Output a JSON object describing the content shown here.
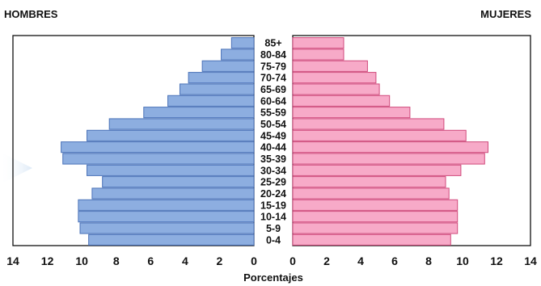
{
  "chart_data": {
    "type": "bar",
    "orientation": "horizontal",
    "subtype": "population-pyramid",
    "left_label": "HOMBRES",
    "right_label": "MUJERES",
    "xlabel": "Porcentajes",
    "categories": [
      "85+",
      "80-84",
      "75-79",
      "70-74",
      "65-69",
      "60-64",
      "55-59",
      "50-54",
      "45-49",
      "40-44",
      "35-39",
      "30-34",
      "25-29",
      "20-24",
      "15-19",
      "10-14",
      "5-9",
      "0-4"
    ],
    "series": [
      {
        "name": "HOMBRES",
        "color": "#8daee0",
        "edge": "#4a72b8",
        "values": [
          1.3,
          1.9,
          3.0,
          3.8,
          4.3,
          5.0,
          6.4,
          8.4,
          9.7,
          11.2,
          11.1,
          9.7,
          8.8,
          9.4,
          10.2,
          10.2,
          10.1,
          9.6
        ]
      },
      {
        "name": "MUJERES",
        "color": "#f7aac8",
        "edge": "#d04a7c",
        "values": [
          3.0,
          3.0,
          4.4,
          4.9,
          5.1,
          5.7,
          6.9,
          8.9,
          10.2,
          11.5,
          11.3,
          9.9,
          9.0,
          9.2,
          9.7,
          9.7,
          9.7,
          9.3
        ]
      }
    ],
    "xlim": [
      0,
      14
    ],
    "xticks_left": [
      "14",
      "12",
      "10",
      "8",
      "6",
      "4",
      "2",
      "0"
    ],
    "xticks_right": [
      "0",
      "2",
      "4",
      "6",
      "8",
      "10",
      "12",
      "14"
    ],
    "grid": false
  }
}
